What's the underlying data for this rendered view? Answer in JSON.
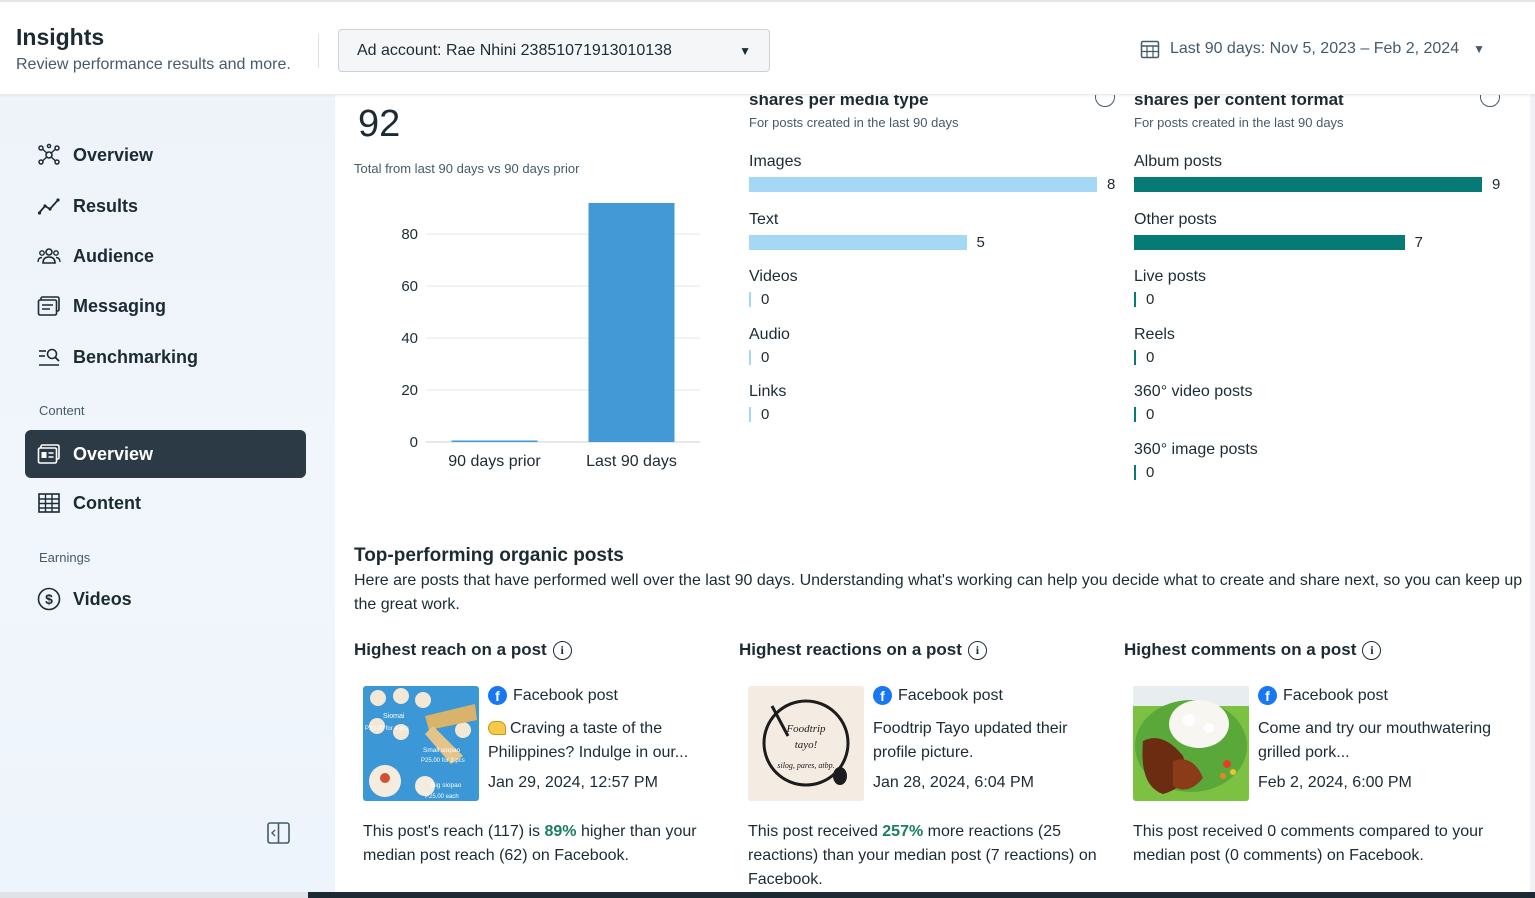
{
  "header": {
    "title": "Insights",
    "subtitle": "Review performance results and more.",
    "ad_account": "Ad account: Rae Nhini 23851071913010138",
    "date_range": "Last 90 days: Nov 5, 2023 – Feb 2, 2024"
  },
  "sidebar": {
    "items": [
      {
        "label": "Overview",
        "icon": "network-icon"
      },
      {
        "label": "Results",
        "icon": "trend-line-icon"
      },
      {
        "label": "Audience",
        "icon": "people-icon"
      },
      {
        "label": "Messaging",
        "icon": "messages-icon"
      },
      {
        "label": "Benchmarking",
        "icon": "benchmark-search-icon"
      }
    ],
    "content_section": "Content",
    "content_items": [
      {
        "label": "Overview",
        "icon": "content-overview-icon",
        "active": true
      },
      {
        "label": "Content",
        "icon": "table-grid-icon"
      }
    ],
    "earnings_section": "Earnings",
    "earnings_items": [
      {
        "label": "Videos",
        "icon": "dollar-circle-icon"
      }
    ]
  },
  "summary": {
    "total": "92",
    "caption": "Total from last 90 days vs 90 days prior"
  },
  "chart_data": {
    "type": "bar",
    "categories": [
      "90 days prior",
      "Last 90 days"
    ],
    "values": [
      0,
      92
    ],
    "ylim": [
      0,
      92
    ],
    "yticks": [
      0,
      20,
      40,
      60,
      80
    ],
    "grid": true,
    "color": "#4299d6"
  },
  "media_type": {
    "title": "shares per media type",
    "subtitle": "For posts created in the last 90 days",
    "color": "#a5d8f5",
    "max": 8,
    "rows": [
      {
        "label": "Images",
        "value": "8"
      },
      {
        "label": "Text",
        "value": "5"
      },
      {
        "label": "Videos",
        "value": "0"
      },
      {
        "label": "Audio",
        "value": "0"
      },
      {
        "label": "Links",
        "value": "0"
      }
    ]
  },
  "content_format": {
    "title": "shares per content format",
    "subtitle": "For posts created in the last 90 days",
    "color": "#067a75",
    "max": 9,
    "rows": [
      {
        "label": "Album posts",
        "value": "9"
      },
      {
        "label": "Other posts",
        "value": "7"
      },
      {
        "label": "Live posts",
        "value": "0"
      },
      {
        "label": "Reels",
        "value": "0"
      },
      {
        "label": "360° video posts",
        "value": "0"
      },
      {
        "label": "360° image posts",
        "value": "0"
      }
    ]
  },
  "top_posts": {
    "title": "Top-performing organic posts",
    "description": "Here are posts that have performed well over the last 90 days. Understanding what's working can help you decide what to create and share next, so you can keep up the great work.",
    "columns": [
      {
        "heading": "Highest reach on a post",
        "source": "Facebook post",
        "text": "Craving a taste of the Philippines? Indulge in our...",
        "date": "Jan 29, 2024, 12:57 PM",
        "summary_pre": "This post's reach (117) is ",
        "summary_pct": "89%",
        "summary_post": " higher than your median post reach (62) on Facebook.",
        "thumb_labels": [
          "Siomai",
          "P20.00 for 4 pcs",
          "Small siopao",
          "P25.00 for 3 pcs",
          "Big siopao",
          "P25.00 each"
        ]
      },
      {
        "heading": "Highest reactions on a post",
        "source": "Facebook post",
        "text": "Foodtrip Tayo updated their profile picture.",
        "date": "Jan 28, 2024, 6:04 PM",
        "summary_pre": "This post received ",
        "summary_pct": "257%",
        "summary_post": " more reactions (25 reactions) than your median post (7 reactions) on Facebook.",
        "thumb_labels": [
          "Foodtrip",
          "tayo!",
          "silog, pares, atbp."
        ]
      },
      {
        "heading": "Highest comments on a post",
        "source": "Facebook post",
        "text": "Come and try our mouthwatering grilled pork...",
        "date": "Feb 2, 2024, 6:00 PM",
        "summary_pre": "This post received 0 comments compared to your median post (0 comments) on Facebook.",
        "summary_pct": "",
        "summary_post": ""
      }
    ]
  }
}
